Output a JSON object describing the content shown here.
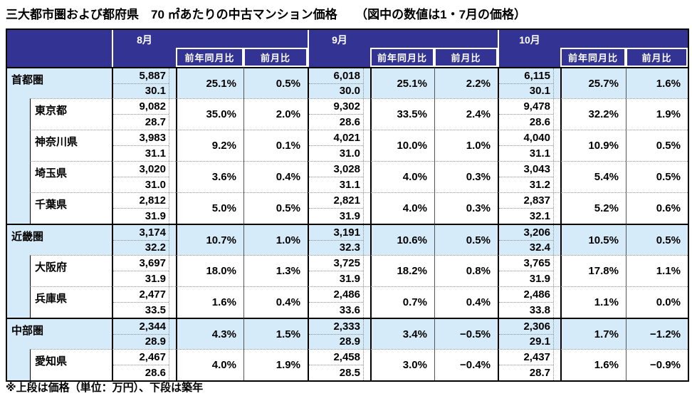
{
  "title": "三大都市圏および都府県　70 ㎡あたりの中古マンション価格　　（図中の数値は1・7月の価格）",
  "footnote": "※上段は価格（単位：万円）、下段は築年",
  "colors": {
    "header_bg": "#333394",
    "group_row_bg": "#D6EBF9"
  },
  "table": {
    "months": [
      "8月",
      "9月",
      "10月"
    ],
    "subheaders": [
      "前年同月比",
      "前月比"
    ],
    "value_note": {
      "upper": "価格（万円）",
      "lower": "築年"
    },
    "rows": [
      {
        "label": "首都圏",
        "type": "group",
        "cells": [
          {
            "price": "5,887",
            "age": "30.1",
            "yoy": "25.1%",
            "mom": "0.5%"
          },
          {
            "price": "6,018",
            "age": "30.0",
            "yoy": "25.1%",
            "mom": "2.2%"
          },
          {
            "price": "6,115",
            "age": "30.1",
            "yoy": "25.7%",
            "mom": "1.6%"
          }
        ]
      },
      {
        "label": "東京都",
        "type": "pref",
        "cells": [
          {
            "price": "9,082",
            "age": "28.7",
            "yoy": "35.0%",
            "mom": "2.0%"
          },
          {
            "price": "9,302",
            "age": "28.6",
            "yoy": "33.5%",
            "mom": "2.4%"
          },
          {
            "price": "9,478",
            "age": "28.6",
            "yoy": "32.2%",
            "mom": "1.9%"
          }
        ]
      },
      {
        "label": "神奈川県",
        "type": "pref",
        "cells": [
          {
            "price": "3,983",
            "age": "31.1",
            "yoy": "9.2%",
            "mom": "0.1%"
          },
          {
            "price": "4,021",
            "age": "31.0",
            "yoy": "10.0%",
            "mom": "1.0%"
          },
          {
            "price": "4,040",
            "age": "31.1",
            "yoy": "10.9%",
            "mom": "0.5%"
          }
        ]
      },
      {
        "label": "埼玉県",
        "type": "pref",
        "cells": [
          {
            "price": "3,020",
            "age": "31.0",
            "yoy": "3.6%",
            "mom": "0.4%"
          },
          {
            "price": "3,028",
            "age": "31.1",
            "yoy": "4.0%",
            "mom": "0.3%"
          },
          {
            "price": "3,043",
            "age": "31.2",
            "yoy": "5.4%",
            "mom": "0.5%"
          }
        ]
      },
      {
        "label": "千葉県",
        "type": "pref",
        "cells": [
          {
            "price": "2,812",
            "age": "31.9",
            "yoy": "5.0%",
            "mom": "0.5%"
          },
          {
            "price": "2,821",
            "age": "31.9",
            "yoy": "4.0%",
            "mom": "0.3%"
          },
          {
            "price": "2,837",
            "age": "32.1",
            "yoy": "5.2%",
            "mom": "0.6%"
          }
        ]
      },
      {
        "label": "近畿圏",
        "type": "group",
        "cells": [
          {
            "price": "3,174",
            "age": "32.2",
            "yoy": "10.7%",
            "mom": "1.0%"
          },
          {
            "price": "3,191",
            "age": "32.3",
            "yoy": "10.6%",
            "mom": "0.5%"
          },
          {
            "price": "3,206",
            "age": "32.4",
            "yoy": "10.5%",
            "mom": "0.5%"
          }
        ]
      },
      {
        "label": "大阪府",
        "type": "pref",
        "cells": [
          {
            "price": "3,697",
            "age": "31.9",
            "yoy": "18.0%",
            "mom": "1.3%"
          },
          {
            "price": "3,725",
            "age": "31.9",
            "yoy": "18.2%",
            "mom": "0.8%"
          },
          {
            "price": "3,765",
            "age": "31.9",
            "yoy": "17.8%",
            "mom": "1.1%"
          }
        ]
      },
      {
        "label": "兵庫県",
        "type": "pref",
        "cells": [
          {
            "price": "2,477",
            "age": "33.5",
            "yoy": "1.6%",
            "mom": "0.4%"
          },
          {
            "price": "2,486",
            "age": "33.6",
            "yoy": "0.7%",
            "mom": "0.4%"
          },
          {
            "price": "2,486",
            "age": "33.8",
            "yoy": "1.1%",
            "mom": "0.0%"
          }
        ]
      },
      {
        "label": "中部圏",
        "type": "group",
        "cells": [
          {
            "price": "2,344",
            "age": "28.9",
            "yoy": "4.3%",
            "mom": "1.5%"
          },
          {
            "price": "2,333",
            "age": "28.9",
            "yoy": "3.4%",
            "mom": "−0.5%"
          },
          {
            "price": "2,306",
            "age": "29.1",
            "yoy": "1.7%",
            "mom": "−1.2%"
          }
        ]
      },
      {
        "label": "愛知県",
        "type": "pref",
        "cells": [
          {
            "price": "2,467",
            "age": "28.6",
            "yoy": "4.0%",
            "mom": "1.9%"
          },
          {
            "price": "2,458",
            "age": "28.5",
            "yoy": "3.0%",
            "mom": "−0.4%"
          },
          {
            "price": "2,437",
            "age": "28.7",
            "yoy": "1.6%",
            "mom": "−0.9%"
          }
        ]
      }
    ]
  }
}
